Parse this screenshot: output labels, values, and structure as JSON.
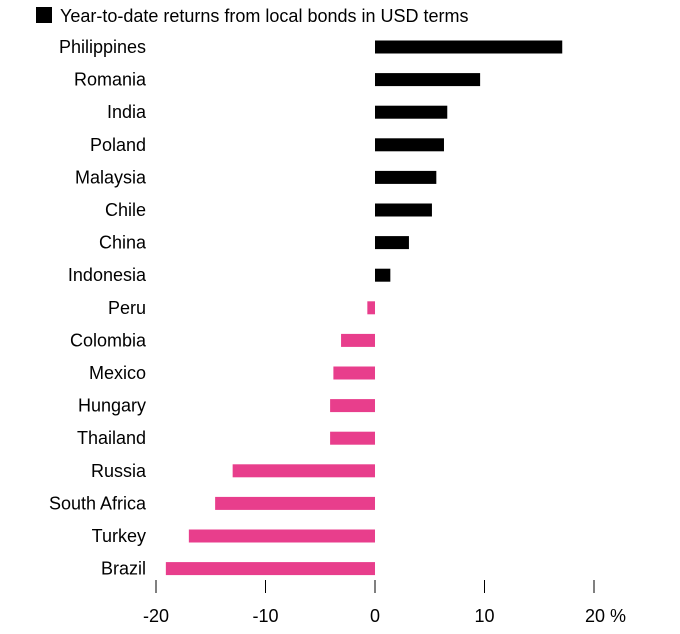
{
  "chart_data": {
    "type": "bar",
    "orientation": "horizontal",
    "legend_label": "Year-to-date returns from local bonds in USD terms",
    "legend_placement": "top-left",
    "categories": [
      "Philippines",
      "Romania",
      "India",
      "Poland",
      "Malaysia",
      "Chile",
      "China",
      "Indonesia",
      "Peru",
      "Colombia",
      "Mexico",
      "Hungary",
      "Thailand",
      "Russia",
      "South Africa",
      "Turkey",
      "Brazil"
    ],
    "values": [
      17.1,
      9.6,
      6.6,
      6.3,
      5.6,
      5.2,
      3.1,
      1.4,
      -0.7,
      -3.1,
      -3.8,
      -4.1,
      -4.1,
      -13.0,
      -14.6,
      -17.0,
      -19.1
    ],
    "positive_color": "#000000",
    "negative_color": "#e83e8c",
    "xlim": [
      -20,
      22
    ],
    "xticks": [
      -20,
      -10,
      0,
      10,
      20
    ],
    "xtick_labels": [
      "-20",
      "-10",
      "0",
      "10",
      "20 %"
    ],
    "grid": false
  }
}
